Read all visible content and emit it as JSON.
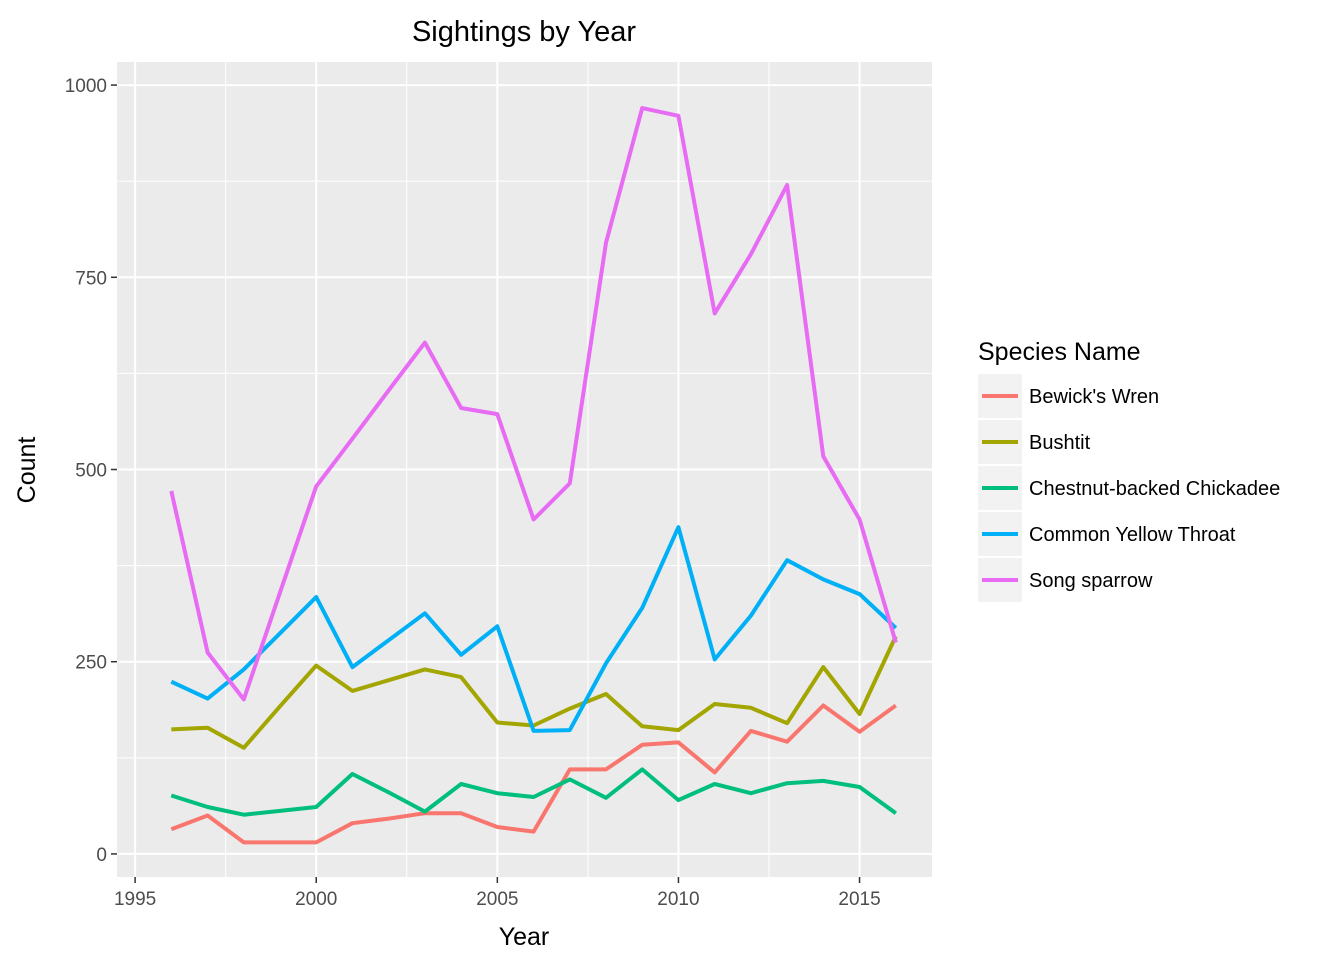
{
  "chart_data": {
    "type": "line",
    "title": "Sightings by Year",
    "xlabel": "Year",
    "ylabel": "Count",
    "xlim": [
      1994.5,
      2017
    ],
    "ylim": [
      -30,
      1030
    ],
    "x_ticks": [
      1995,
      2000,
      2005,
      2010,
      2015
    ],
    "y_ticks": [
      0,
      250,
      500,
      750,
      1000
    ],
    "x_tick_labels": [
      "1995",
      "2000",
      "2005",
      "2010",
      "2015"
    ],
    "y_tick_labels": [
      "0",
      "250",
      "500",
      "750",
      "1000"
    ],
    "grid": true,
    "legend": {
      "title": "Species Name",
      "placement": "right"
    },
    "x": [
      1996,
      1997,
      1998,
      1999,
      2000,
      2001,
      2002,
      2003,
      2004,
      2005,
      2006,
      2007,
      2008,
      2009,
      2010,
      2011,
      2012,
      2013,
      2014,
      2015,
      2016
    ],
    "series": [
      {
        "name": "Bewick's Wren",
        "color": "#F8766D",
        "values": [
          32,
          50,
          15,
          15,
          15,
          40,
          46,
          53,
          53,
          35,
          29,
          110,
          110,
          142,
          145,
          106,
          160,
          146,
          193,
          159,
          193
        ]
      },
      {
        "name": "Bushtit",
        "color": "#A3A500",
        "values": [
          162,
          164,
          138,
          192,
          245,
          212,
          226,
          240,
          230,
          171,
          167,
          189,
          208,
          166,
          161,
          195,
          190,
          170,
          243,
          182,
          283
        ]
      },
      {
        "name": "Chestnut-backed Chickadee",
        "color": "#00BF7D",
        "values": [
          76,
          61,
          51,
          56,
          61,
          104,
          80,
          55,
          91,
          79,
          74,
          97,
          73,
          110,
          70,
          91,
          79,
          92,
          95,
          87,
          53
        ]
      },
      {
        "name": "Common Yellow Throat",
        "color": "#00B0F6",
        "values": [
          224,
          202,
          240,
          287,
          334,
          243,
          278,
          313,
          259,
          296,
          160,
          161,
          248,
          320,
          425,
          253,
          310,
          382,
          357,
          338,
          294
        ]
      },
      {
        "name": "Song sparrow",
        "color": "#E76BF3",
        "values": [
          472,
          262,
          201,
          340,
          478,
          540,
          603,
          665,
          580,
          572,
          435,
          482,
          795,
          970,
          960,
          703,
          780,
          870,
          517,
          435,
          275
        ]
      }
    ]
  }
}
